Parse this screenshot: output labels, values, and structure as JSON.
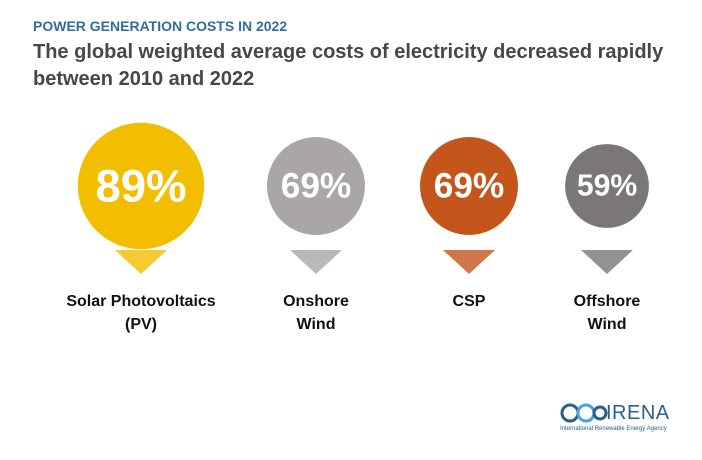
{
  "chart_data": {
    "type": "bubble",
    "kicker": "POWER GENERATION COSTS IN 2022",
    "title": "The global weighted average costs of electricity decreased rapidly between 2010 and 2022",
    "categories": [
      "Solar Photovoltaics (PV)",
      "Onshore Wind",
      "CSP",
      "Offshore Wind"
    ],
    "values": [
      89,
      69,
      69,
      59
    ],
    "value_labels": [
      "89%",
      "69%",
      "69%",
      "59%"
    ],
    "colors": [
      "#f3bd00",
      "#aaa6a7",
      "#c4551b",
      "#7b7677"
    ],
    "logo": {
      "name": "IRENA",
      "tagline": "International Renewable Energy Agency"
    }
  }
}
